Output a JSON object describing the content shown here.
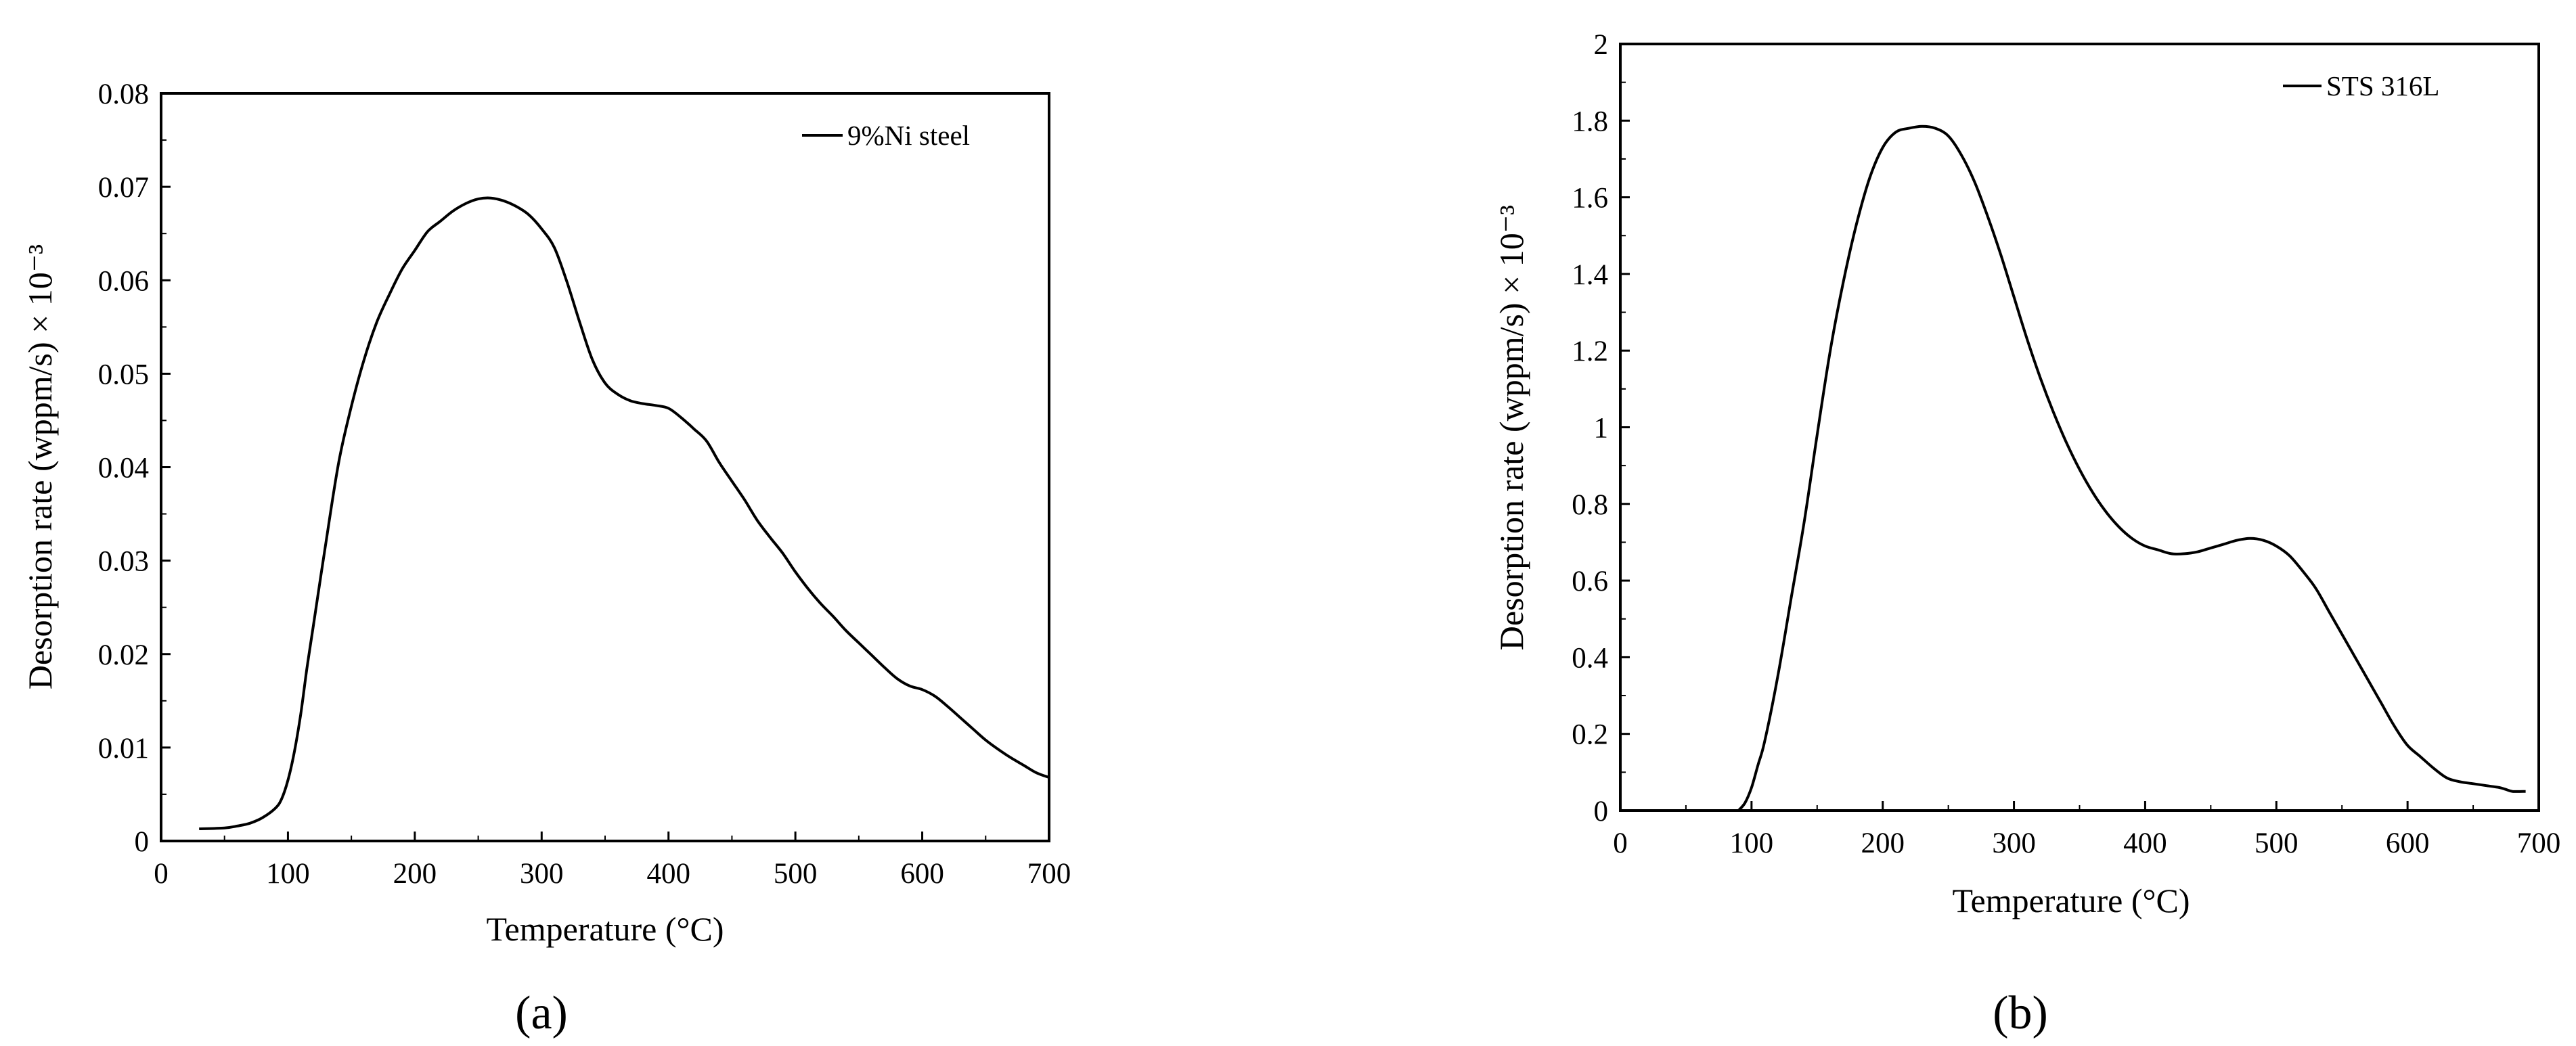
{
  "chart_data": [
    {
      "type": "line",
      "panel_label": "(a)",
      "xlabel": "Temperature (°C)",
      "ylabel": "Desorption rate (wppm/s) × 10⁻³",
      "xlim": [
        0,
        700
      ],
      "ylim": [
        0,
        0.08
      ],
      "x_ticks": [
        "0",
        "100",
        "200",
        "300",
        "400",
        "500",
        "600",
        "700"
      ],
      "y_ticks": [
        "0",
        "0.01",
        "0.02",
        "0.03",
        "0.04",
        "0.05",
        "0.06",
        "0.07",
        "0.08"
      ],
      "legend_position": "top-right",
      "grid": false,
      "series": [
        {
          "name": "9%Ni steel",
          "x": [
            30,
            50,
            60,
            70,
            80,
            90,
            95,
            100,
            105,
            110,
            115,
            120,
            130,
            140,
            150,
            160,
            170,
            180,
            190,
            200,
            210,
            220,
            230,
            240,
            250,
            260,
            270,
            280,
            290,
            300,
            310,
            320,
            330,
            340,
            350,
            360,
            370,
            380,
            390,
            400,
            410,
            420,
            430,
            440,
            450,
            460,
            470,
            480,
            490,
            500,
            510,
            520,
            530,
            540,
            550,
            560,
            570,
            580,
            590,
            600,
            610,
            620,
            630,
            640,
            650,
            660,
            670,
            680,
            690,
            700
          ],
          "y": [
            0.0013,
            0.0014,
            0.0016,
            0.0019,
            0.0025,
            0.0035,
            0.0045,
            0.0065,
            0.0095,
            0.0135,
            0.0185,
            0.023,
            0.032,
            0.0405,
            0.0465,
            0.0515,
            0.0555,
            0.0585,
            0.0612,
            0.0632,
            0.0652,
            0.0663,
            0.0674,
            0.0682,
            0.0687,
            0.0688,
            0.0685,
            0.0679,
            0.067,
            0.0655,
            0.0635,
            0.0598,
            0.0555,
            0.0515,
            0.049,
            0.0478,
            0.0471,
            0.0468,
            0.0466,
            0.0463,
            0.0453,
            0.0441,
            0.0428,
            0.0405,
            0.0385,
            0.0365,
            0.0343,
            0.0325,
            0.0308,
            0.0288,
            0.027,
            0.0254,
            0.024,
            0.0225,
            0.0212,
            0.0199,
            0.0186,
            0.0174,
            0.0166,
            0.0162,
            0.0155,
            0.0144,
            0.0132,
            0.012,
            0.0108,
            0.0098,
            0.0089,
            0.0081,
            0.0073,
            0.0068
          ]
        }
      ]
    },
    {
      "type": "line",
      "panel_label": "(b)",
      "xlabel": "Temperature (°C)",
      "ylabel": "Desorption rate (wppm/s) × 10⁻³",
      "xlim": [
        0,
        700
      ],
      "ylim": [
        0,
        2
      ],
      "x_ticks": [
        "0",
        "100",
        "200",
        "300",
        "400",
        "500",
        "600",
        "700"
      ],
      "y_ticks": [
        "0",
        "0.2",
        "0.4",
        "0.6",
        "0.8",
        "1",
        "1.2",
        "1.4",
        "1.6",
        "1.8",
        "2"
      ],
      "legend_position": "top-right",
      "grid": false,
      "series": [
        {
          "name": "STS 316L",
          "x": [
            90,
            95,
            100,
            105,
            110,
            120,
            130,
            140,
            150,
            160,
            170,
            180,
            190,
            200,
            210,
            220,
            230,
            240,
            250,
            260,
            270,
            280,
            290,
            300,
            310,
            320,
            330,
            340,
            350,
            360,
            370,
            380,
            390,
            400,
            410,
            420,
            430,
            440,
            450,
            460,
            470,
            480,
            490,
            500,
            510,
            520,
            530,
            540,
            550,
            560,
            570,
            580,
            590,
            600,
            610,
            620,
            630,
            640,
            650,
            660,
            670,
            675,
            680,
            690
          ],
          "y": [
            0.0,
            0.02,
            0.06,
            0.12,
            0.18,
            0.35,
            0.55,
            0.75,
            0.98,
            1.2,
            1.38,
            1.53,
            1.65,
            1.73,
            1.77,
            1.78,
            1.785,
            1.78,
            1.76,
            1.71,
            1.64,
            1.55,
            1.45,
            1.34,
            1.23,
            1.13,
            1.04,
            0.96,
            0.89,
            0.83,
            0.78,
            0.74,
            0.71,
            0.69,
            0.68,
            0.67,
            0.67,
            0.675,
            0.685,
            0.695,
            0.705,
            0.71,
            0.705,
            0.69,
            0.665,
            0.625,
            0.58,
            0.52,
            0.46,
            0.4,
            0.34,
            0.28,
            0.22,
            0.17,
            0.14,
            0.11,
            0.085,
            0.075,
            0.07,
            0.065,
            0.06,
            0.055,
            0.05,
            0.05
          ]
        }
      ]
    }
  ]
}
